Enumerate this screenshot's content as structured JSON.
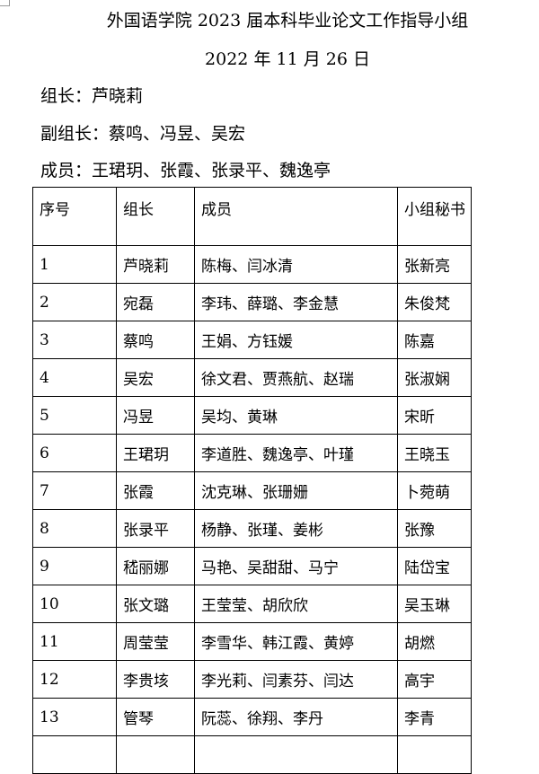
{
  "title": "外国语学院 2023 届本科毕业论文工作指导小组",
  "date": "2022 年 11 月 26 日",
  "leader": "组长：芦晓莉",
  "vice_leaders": "副组长：蔡鸣、冯昱、吴宏",
  "members": "成员：王珺玥、张霞、张录平、魏逸亭",
  "table": {
    "headers": [
      "序号",
      "组长",
      "成员",
      "小组秘书"
    ],
    "rows": [
      [
        "1",
        "芦晓莉",
        "陈梅、闫冰清",
        "张新亮"
      ],
      [
        "2",
        "宛磊",
        "李玮、薛璐、李金慧",
        "朱俊梵"
      ],
      [
        "3",
        "蔡鸣",
        "王娟、方钰媛",
        "陈嘉"
      ],
      [
        "4",
        "吴宏",
        "徐文君、贾燕航、赵瑞",
        "张淑娴"
      ],
      [
        "5",
        "冯昱",
        "吴均、黄琳",
        "宋昕"
      ],
      [
        "6",
        "王珺玥",
        "李道胜、魏逸亭、叶瑾",
        "王晓玉"
      ],
      [
        "7",
        "张霞",
        "沈克琳、张珊姗",
        "卜菀萌"
      ],
      [
        "8",
        "张录平",
        "杨静、张瑾、姜彬",
        "张豫"
      ],
      [
        "9",
        "嵇丽娜",
        "马艳、吴甜甜、马宁",
        "陆岱宝"
      ],
      [
        "10",
        "张文璐",
        "王莹莹、胡欣欣",
        "吴玉琳"
      ],
      [
        "11",
        "周莹莹",
        "李雪华、韩江霞、黄婷",
        "胡燃"
      ],
      [
        "12",
        "李贵垓",
        "李光莉、闫素芬、闫达",
        "高宇"
      ],
      [
        "13",
        "管琴",
        "阮蕊、徐翔、李丹",
        "李青"
      ]
    ]
  }
}
